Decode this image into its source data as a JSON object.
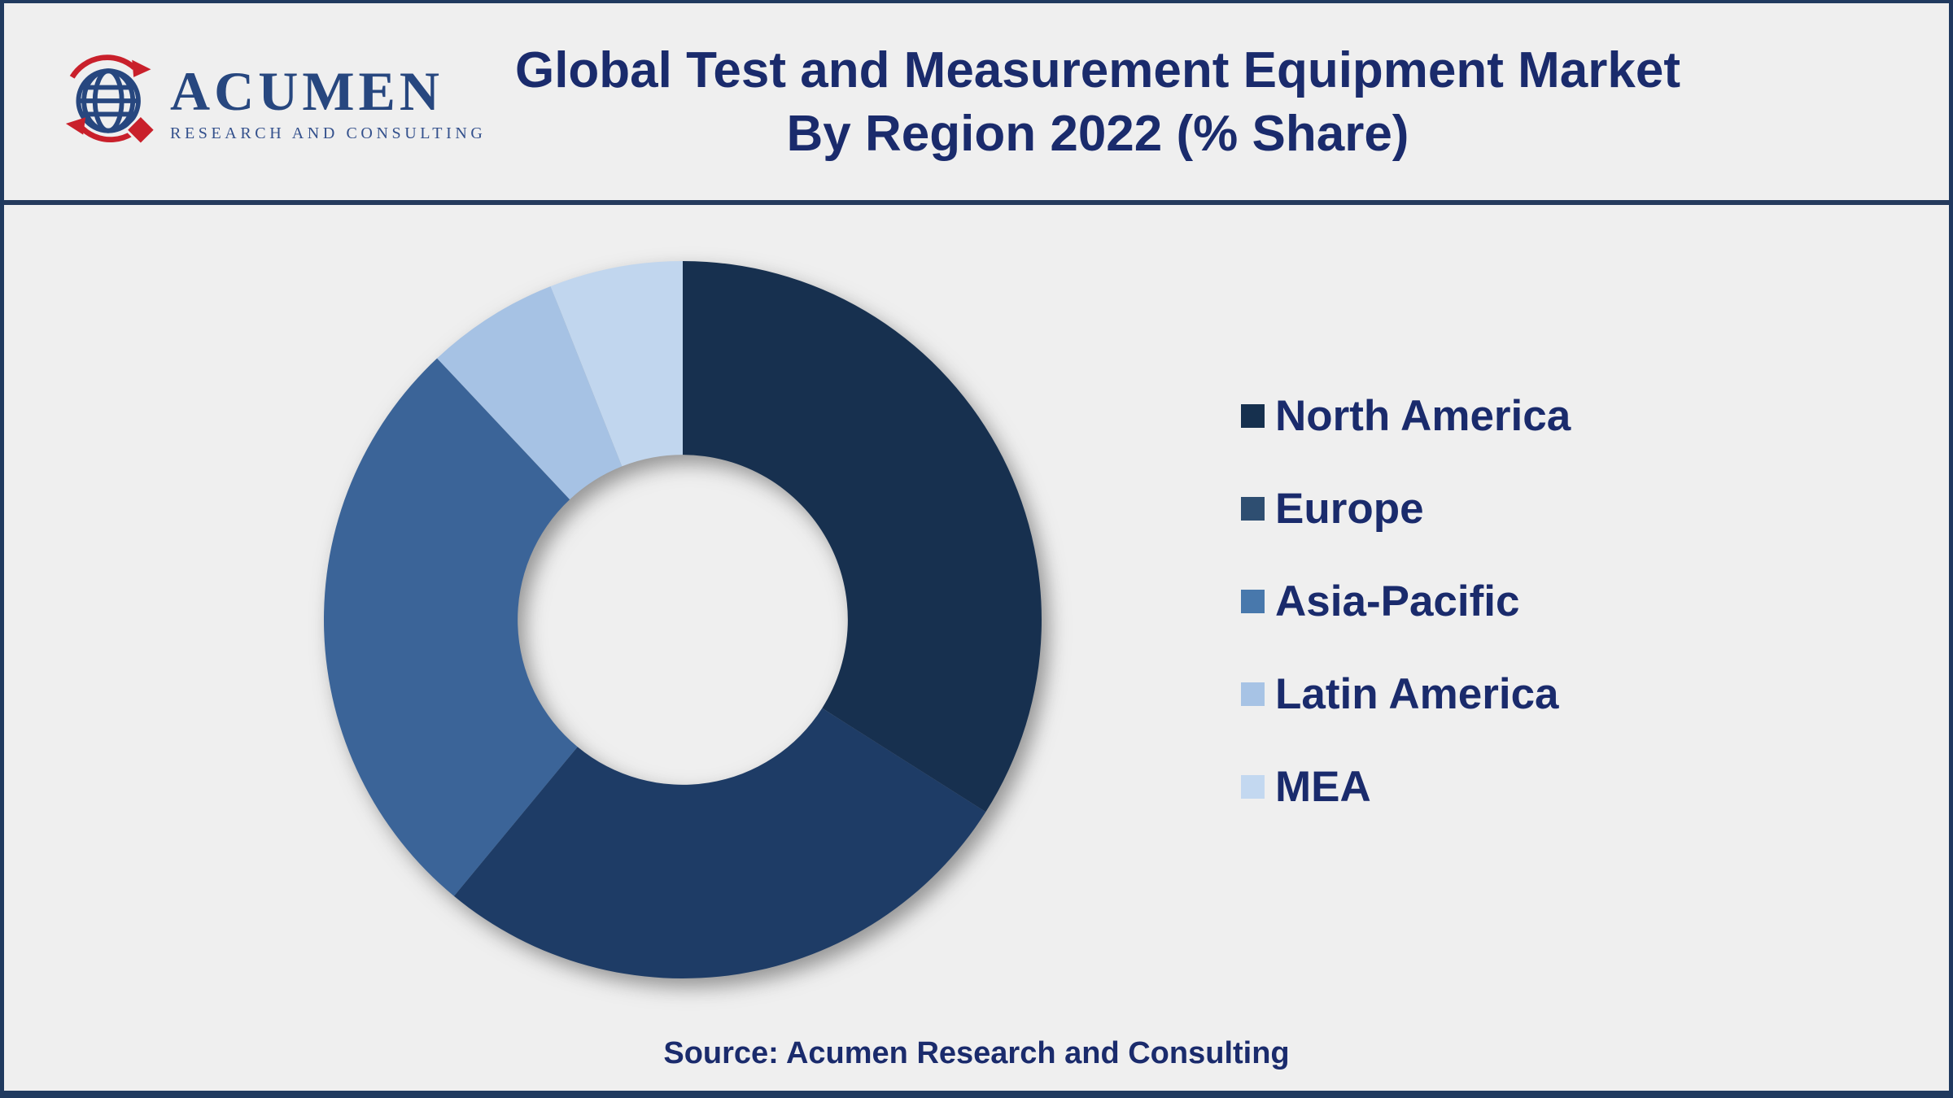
{
  "header": {
    "logo": {
      "icon": "globe-icon",
      "name": "ACUMEN",
      "tagline": "RESEARCH AND CONSULTING"
    },
    "title_line1": "Global Test and Measurement Equipment Market",
    "title_line2": "By Region 2022 (% Share)"
  },
  "footer": {
    "source": "Source: Acumen Research and Consulting"
  },
  "colors": {
    "background": "#EFEFEF",
    "frame_border": "#203A5F",
    "header_divider": "#243A5C",
    "heading_text": "#1A2B6C",
    "logo_blue": "#27477F",
    "logo_red": "#C9202B"
  },
  "chart_data": {
    "type": "pie",
    "subtype": "donut",
    "title": "Global Test and Measurement Equipment Market By Region 2022 (% Share)",
    "categories": [
      "North America",
      "Europe",
      "Asia-Pacific",
      "Latin America",
      "MEA"
    ],
    "values": [
      34,
      27,
      27,
      6,
      6
    ],
    "unit": "%",
    "slice_colors": [
      "#17304F",
      "#1E3C66",
      "#3B6498",
      "#A6C2E4",
      "#C1D6EE"
    ],
    "legend_marker_colors": [
      "#16304E",
      "#2E4E71",
      "#4878AC",
      "#A7C3E5",
      "#C3D8F0"
    ],
    "start_angle_deg": 0,
    "direction": "clockwise",
    "inner_radius_ratio": 0.46,
    "data_labels": false,
    "legend_position": "right"
  }
}
